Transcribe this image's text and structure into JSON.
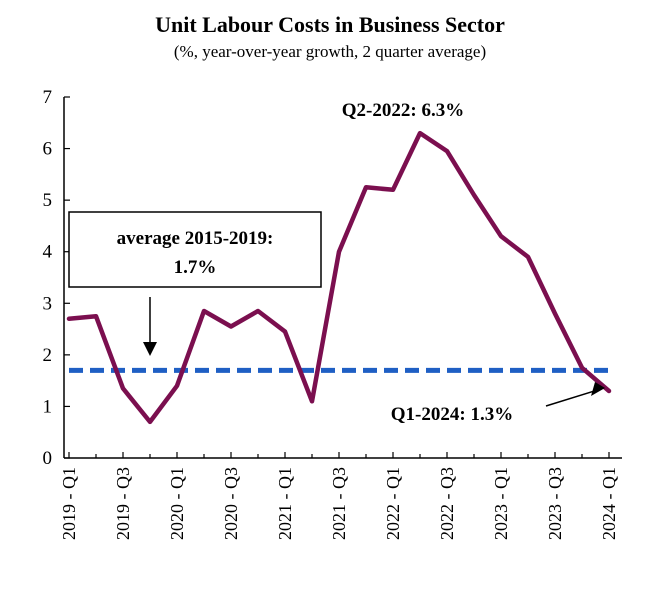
{
  "chart_data": {
    "type": "line",
    "title": "Unit Labour Costs in Business Sector",
    "subtitle": "(%, year-over-year growth, 2 quarter average)",
    "xlabel": "",
    "ylabel": "",
    "ylim": [
      0,
      7
    ],
    "yticks": [
      0,
      1,
      2,
      3,
      4,
      5,
      6,
      7
    ],
    "categories": [
      "2019 - Q1",
      "2019 - Q2",
      "2019 - Q3",
      "2019 - Q4",
      "2020 - Q1",
      "2020 - Q2",
      "2020 - Q3",
      "2020 - Q4",
      "2021 - Q1",
      "2021 - Q2",
      "2021 - Q3",
      "2021 - Q4",
      "2022 - Q1",
      "2022 - Q2",
      "2022 - Q3",
      "2022 - Q4",
      "2023 - Q1",
      "2023 - Q2",
      "2023 - Q3",
      "2023 - Q4",
      "2024 - Q1"
    ],
    "xtick_labels": [
      "2019 - Q1",
      "2019 - Q3",
      "2020 - Q1",
      "2020 - Q3",
      "2021 - Q1",
      "2021 - Q3",
      "2022 - Q1",
      "2022 - Q3",
      "2023 - Q1",
      "2023 - Q3",
      "2024 - Q1"
    ],
    "series": [
      {
        "color": "#7b0f4f",
        "values": [
          2.7,
          2.75,
          1.35,
          0.7,
          1.4,
          2.85,
          2.55,
          2.85,
          2.45,
          1.1,
          4.0,
          5.25,
          5.2,
          6.3,
          5.95,
          5.1,
          4.3,
          3.9,
          2.8,
          1.75,
          1.3
        ]
      }
    ],
    "reference_line": {
      "value": 1.7,
      "color": "#1f5fc4",
      "style": "dashed"
    },
    "annotations": [
      {
        "text_line1": "average 2015-2019:",
        "text_line2": "1.7%",
        "boxed": true,
        "arrow_to": "2019 - Q4"
      },
      {
        "text": "Q2-2022: 6.3%",
        "boxed": false,
        "point": "2022 - Q2"
      },
      {
        "text": "Q1-2024: 1.3%",
        "boxed": false,
        "arrow_to": "2024 - Q1"
      }
    ],
    "grid": false,
    "legend": "none"
  }
}
